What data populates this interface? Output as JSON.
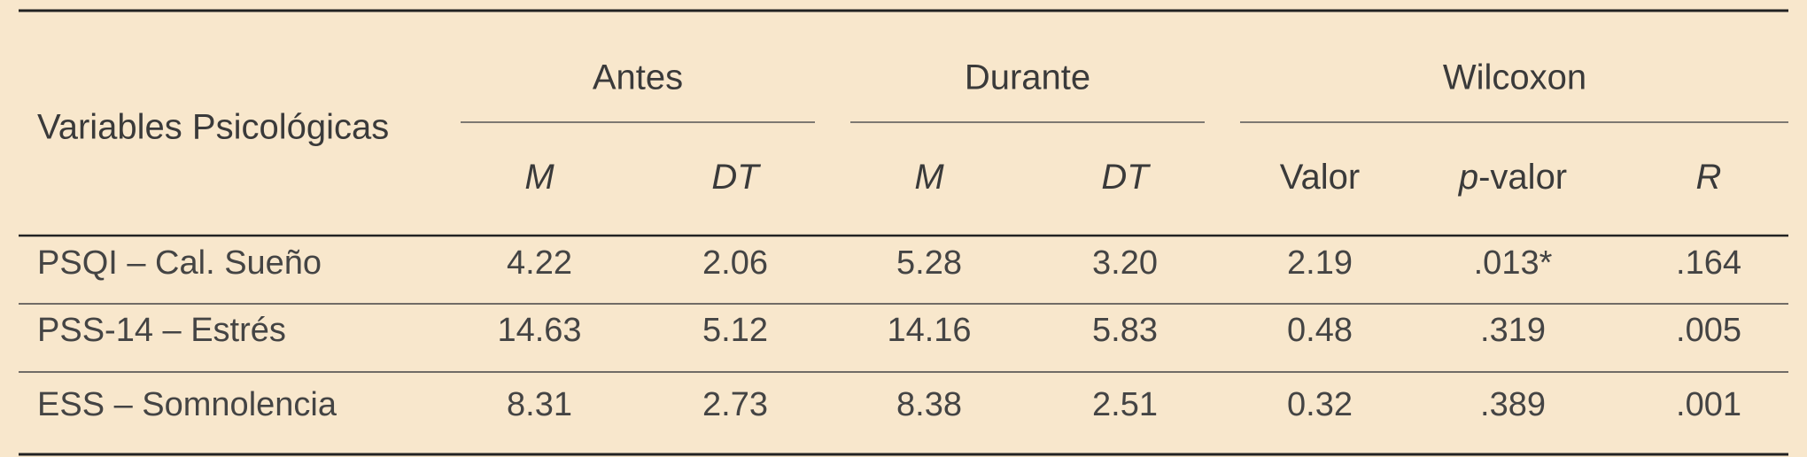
{
  "table": {
    "row_header": "Variables Psicológicas",
    "groups": [
      "Antes",
      "Durante",
      "Wilcoxon"
    ],
    "subheaders": [
      {
        "parts": [
          {
            "text": "M",
            "italic": true
          }
        ]
      },
      {
        "parts": [
          {
            "text": "DT",
            "italic": true
          }
        ]
      },
      {
        "parts": [
          {
            "text": "M",
            "italic": true
          }
        ]
      },
      {
        "parts": [
          {
            "text": "DT",
            "italic": true
          }
        ]
      },
      {
        "parts": [
          {
            "text": "Valor",
            "italic": false
          }
        ]
      },
      {
        "parts": [
          {
            "text": "p",
            "italic": true
          },
          {
            "text": "-valor",
            "italic": false
          }
        ]
      },
      {
        "parts": [
          {
            "text": "R",
            "italic": true
          }
        ]
      }
    ],
    "rows": [
      [
        "PSQI – Cal. Sueño",
        "4.22",
        "2.06",
        "5.28",
        "3.20",
        "2.19",
        ".013*",
        ".164"
      ],
      [
        "PSS-14 – Estrés",
        "14.63",
        "5.12",
        "14.16",
        "5.83",
        "0.48",
        ".319",
        ".005"
      ],
      [
        "ESS – Somnolencia",
        "8.31",
        "2.73",
        "8.38",
        "2.51",
        "0.32",
        ".389",
        ".001"
      ]
    ]
  }
}
